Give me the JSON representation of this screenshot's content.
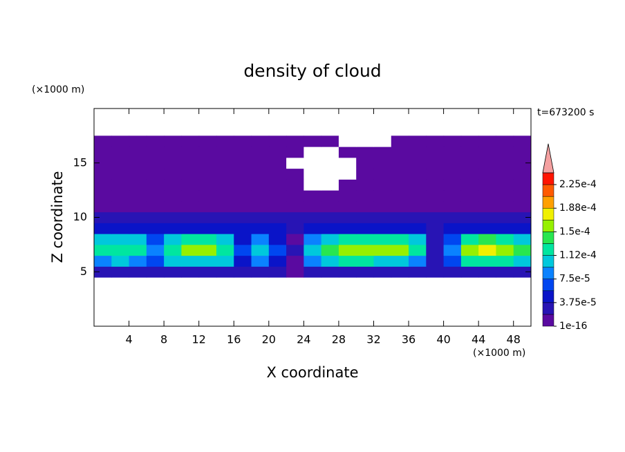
{
  "chart_data": {
    "type": "contour",
    "title": "density of cloud",
    "x_unit": "(×1000 m)",
    "y_unit": "(×1000 m)",
    "time_label": "t=673200 s",
    "xlabel": "X coordinate",
    "ylabel": "Z coordinate",
    "xlim": [
      0,
      50
    ],
    "ylim": [
      0,
      20
    ],
    "xticks": [
      4,
      8,
      12,
      16,
      20,
      24,
      28,
      32,
      36,
      40,
      44,
      48
    ],
    "yticks": [
      5,
      10,
      15
    ],
    "x": [
      1,
      3,
      5,
      7,
      9,
      11,
      13,
      15,
      17,
      19,
      21,
      23,
      25,
      27,
      29,
      31,
      33,
      35,
      37,
      39,
      41,
      43,
      45,
      47,
      49
    ],
    "z": [
      5,
      6,
      7,
      8,
      9,
      10,
      11,
      12,
      13,
      14,
      15,
      16,
      17
    ],
    "values": [
      [
        2.5e-05,
        2.5e-05,
        2.5e-05,
        2.5e-05,
        2.5e-05,
        2.5e-05,
        2.5e-05,
        2.5e-05,
        2.5e-05,
        2.5e-05,
        2.5e-05,
        1e-05,
        2.5e-05,
        2.5e-05,
        2.5e-05,
        2.5e-05,
        2.5e-05,
        2.5e-05,
        2.5e-05,
        2.5e-05,
        2.5e-05,
        2.5e-05,
        2.5e-05,
        2.5e-05,
        2.5e-05
      ],
      [
        9e-05,
        9.8e-05,
        9e-05,
        6.8e-05,
        9.8e-05,
        0.00011,
        0.00011,
        9.8e-05,
        5.2e-05,
        7.5e-05,
        4.5e-05,
        1.5e-05,
        8.2e-05,
        0.000105,
        0.00012,
        0.00012,
        0.00011,
        0.00011,
        9e-05,
        2.2e-05,
        6e-05,
        0.00012,
        0.00013,
        0.00012,
        0.000105
      ],
      [
        0.00012,
        0.00013,
        0.00012,
        9e-05,
        0.00013,
        0.00015,
        0.00015,
        0.00013,
        7e-05,
        0.0001,
        6e-05,
        2e-05,
        0.00011,
        0.00014,
        0.00016,
        0.00016,
        0.00015,
        0.00015,
        0.00012,
        3e-05,
        8e-05,
        0.00016,
        0.000175,
        0.000165,
        0.00014
      ],
      [
        9.6e-05,
        0.0001,
        9.6e-05,
        7.2e-05,
        0.0001,
        0.00012,
        0.00012,
        0.0001,
        5.6e-05,
        8e-05,
        4.8e-05,
        1.6e-05,
        8.8e-05,
        0.00011,
        0.00013,
        0.00013,
        0.00012,
        0.00012,
        9.6e-05,
        2.4e-05,
        6.4e-05,
        0.00013,
        0.00014,
        0.00013,
        0.00011
      ],
      [
        5e-05,
        5e-05,
        5e-05,
        5e-05,
        5e-05,
        5e-05,
        5e-05,
        5e-05,
        5e-05,
        5e-05,
        5e-05,
        2e-05,
        5e-05,
        5e-05,
        5e-05,
        5e-05,
        5e-05,
        5e-05,
        5e-05,
        3e-05,
        5e-05,
        5e-05,
        5e-05,
        5e-05,
        5e-05
      ],
      [
        3e-05,
        3e-05,
        3e-05,
        3e-05,
        3e-05,
        3e-05,
        3e-05,
        3e-05,
        3e-05,
        3e-05,
        3e-05,
        3e-05,
        3e-05,
        3e-05,
        3e-05,
        3e-05,
        3e-05,
        3e-05,
        3e-05,
        3e-05,
        3e-05,
        3e-05,
        3e-05,
        3e-05,
        3e-05
      ],
      [
        1.5e-05,
        1.5e-05,
        1.5e-05,
        1.5e-05,
        1.5e-05,
        1.5e-05,
        1.5e-05,
        1.5e-05,
        1.5e-05,
        1.5e-05,
        1.5e-05,
        1.5e-05,
        1.5e-05,
        1.5e-05,
        1.5e-05,
        1.5e-05,
        1.5e-05,
        1.5e-05,
        1.5e-05,
        1.5e-05,
        1.5e-05,
        1.5e-05,
        1.5e-05,
        1.5e-05,
        1.5e-05
      ],
      [
        1e-05,
        1e-05,
        1e-05,
        1e-05,
        1e-05,
        1e-05,
        1e-05,
        1e-05,
        1e-05,
        1e-05,
        1e-05,
        1e-05,
        1e-05,
        1e-05,
        1e-05,
        1e-05,
        1e-05,
        1e-05,
        1e-05,
        1e-05,
        1e-05,
        1e-05,
        1e-05,
        1e-05,
        1e-05
      ],
      [
        1e-05,
        1e-05,
        1e-05,
        1e-05,
        1e-05,
        1e-05,
        1e-05,
        1e-05,
        1e-05,
        1e-05,
        1e-05,
        1e-05,
        0,
        0,
        1e-05,
        1e-05,
        1e-05,
        1e-05,
        1e-05,
        1e-05,
        1e-05,
        1e-05,
        1e-05,
        1e-05,
        1e-05
      ],
      [
        1e-05,
        1e-05,
        1e-05,
        1e-05,
        1e-05,
        1e-05,
        1e-05,
        1e-05,
        1e-05,
        1e-05,
        1e-05,
        1e-05,
        0,
        0,
        0,
        1e-05,
        1e-05,
        1e-05,
        1e-05,
        1e-05,
        1e-05,
        1e-05,
        1e-05,
        1e-05,
        1e-05
      ],
      [
        1e-05,
        1e-05,
        1e-05,
        1e-05,
        1e-05,
        1e-05,
        1e-05,
        1e-05,
        1e-05,
        1e-05,
        1e-05,
        0,
        0,
        0,
        0,
        1e-05,
        1e-05,
        1e-05,
        1e-05,
        1e-05,
        1e-05,
        1e-05,
        1e-05,
        1e-05,
        1e-05
      ],
      [
        1e-05,
        1e-05,
        1e-05,
        1e-05,
        1e-05,
        1e-05,
        1e-05,
        1e-05,
        1e-05,
        1e-05,
        1e-05,
        1e-05,
        0,
        0,
        1e-05,
        1e-05,
        1e-05,
        1e-05,
        1e-05,
        1e-05,
        1e-05,
        1e-05,
        1e-05,
        1e-05,
        1e-05
      ],
      [
        1e-05,
        1e-05,
        1e-05,
        1e-05,
        1e-05,
        1e-05,
        1e-05,
        1e-05,
        1e-05,
        1e-05,
        1e-05,
        1e-05,
        1e-05,
        1e-05,
        0,
        0,
        0,
        1e-05,
        1e-05,
        1e-05,
        1e-05,
        1e-05,
        1e-05,
        1e-05,
        1e-05
      ]
    ],
    "levels": [
      1e-16,
      1.875e-05,
      3.75e-05,
      5.625e-05,
      7.5e-05,
      9.375e-05,
      0.0001125,
      0.00013125,
      0.00015,
      0.00016875,
      0.0001875,
      0.00020625,
      0.000225,
      0.00024375
    ],
    "colors": [
      "#5a0aa0",
      "#2814b4",
      "#0a14c8",
      "#0046f0",
      "#0a82ff",
      "#00c8dc",
      "#00e6a0",
      "#28e650",
      "#96f000",
      "#f0f000",
      "#ffa000",
      "#ff5a00",
      "#ff1400"
    ],
    "extend_color": "#f4a0a0",
    "colorbar_ticks": [
      {
        "value": 1e-16,
        "label": "1e-16"
      },
      {
        "value": 3.75e-05,
        "label": "3.75e-5"
      },
      {
        "value": 7.5e-05,
        "label": "7.5e-5"
      },
      {
        "value": 0.0001125,
        "label": "1.12e-4"
      },
      {
        "value": 0.00015,
        "label": "1.5e-4"
      },
      {
        "value": 0.0001875,
        "label": "1.88e-4"
      },
      {
        "value": 0.000225,
        "label": "2.25e-4"
      }
    ]
  }
}
